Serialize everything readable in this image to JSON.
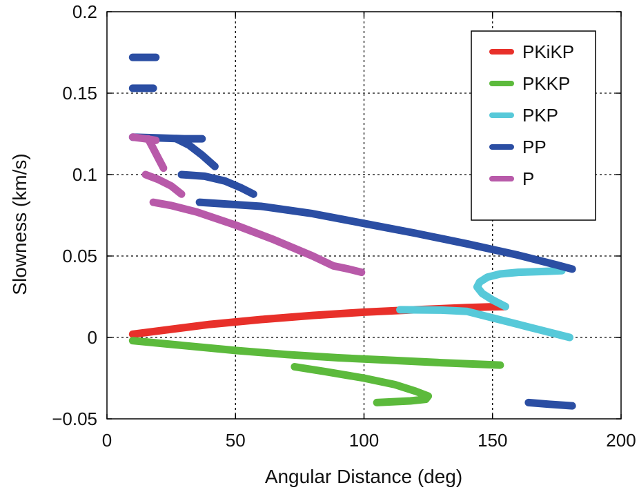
{
  "chart_data": {
    "type": "scatter",
    "xlabel": "Angular Distance (deg)",
    "ylabel": "Slowness (km/s)",
    "xlim": [
      0,
      200
    ],
    "ylim": [
      -0.05,
      0.2
    ],
    "xticks": [
      0,
      50,
      100,
      150,
      200
    ],
    "xtick_labels": [
      "0",
      "50",
      "100",
      "150",
      "200"
    ],
    "yticks": [
      -0.05,
      0,
      0.05,
      0.1,
      0.15,
      0.2
    ],
    "ytick_labels": [
      "−0.05",
      "0",
      "0.05",
      "0.1",
      "0.15",
      "0.2"
    ],
    "grid": true,
    "legend_position": "top-right",
    "series": [
      {
        "name": "PKiKP",
        "color": "#e8302a",
        "segments": [
          [
            [
              10,
              0.002
            ],
            [
              20,
              0.004
            ],
            [
              40,
              0.008
            ],
            [
              60,
              0.011
            ],
            [
              80,
              0.0135
            ],
            [
              100,
              0.0155
            ],
            [
              120,
              0.017
            ],
            [
              140,
              0.0183
            ],
            [
              150,
              0.0188
            ],
            [
              155,
              0.019
            ]
          ]
        ]
      },
      {
        "name": "PKKP",
        "color": "#5cba3c",
        "segments": [
          [
            [
              10,
              -0.002
            ],
            [
              30,
              -0.005
            ],
            [
              50,
              -0.008
            ],
            [
              70,
              -0.0105
            ],
            [
              90,
              -0.0125
            ],
            [
              110,
              -0.014
            ],
            [
              130,
              -0.0155
            ],
            [
              153,
              -0.017
            ]
          ],
          [
            [
              73,
              -0.018
            ],
            [
              85,
              -0.021
            ],
            [
              100,
              -0.025
            ],
            [
              112,
              -0.029
            ],
            [
              120,
              -0.033
            ],
            [
              125,
              -0.036
            ],
            [
              124,
              -0.038
            ],
            [
              118,
              -0.039
            ],
            [
              105,
              -0.04
            ]
          ]
        ]
      },
      {
        "name": "PKP",
        "color": "#57c9d9",
        "segments": [
          [
            [
              114,
              0.017
            ],
            [
              130,
              0.0168
            ],
            [
              140,
              0.016
            ],
            [
              150,
              0.012
            ],
            [
              160,
              0.008
            ],
            [
              170,
              0.004
            ],
            [
              180,
              0.0
            ]
          ],
          [
            [
              155,
              0.019
            ],
            [
              150,
              0.023
            ],
            [
              146,
              0.027
            ],
            [
              144,
              0.031
            ],
            [
              145,
              0.034
            ],
            [
              148,
              0.037
            ],
            [
              153,
              0.039
            ],
            [
              160,
              0.04
            ],
            [
              170,
              0.0405
            ],
            [
              177,
              0.041
            ]
          ]
        ]
      },
      {
        "name": "PP",
        "color": "#2b4ea3",
        "segments": [
          [
            [
              10,
              0.172
            ],
            [
              19,
              0.172
            ]
          ],
          [
            [
              10,
              0.153
            ],
            [
              18,
              0.153
            ]
          ],
          [
            [
              10,
              0.123
            ],
            [
              20,
              0.1225
            ],
            [
              30,
              0.122
            ],
            [
              37,
              0.122
            ]
          ],
          [
            [
              27,
              0.122
            ],
            [
              32,
              0.118
            ],
            [
              37,
              0.112
            ],
            [
              42,
              0.105
            ]
          ],
          [
            [
              29,
              0.1
            ],
            [
              38,
              0.099
            ],
            [
              46,
              0.096
            ],
            [
              52,
              0.092
            ],
            [
              57,
              0.088
            ]
          ],
          [
            [
              36,
              0.083
            ],
            [
              60,
              0.0805
            ],
            [
              80,
              0.076
            ],
            [
              100,
              0.07
            ],
            [
              120,
              0.064
            ],
            [
              140,
              0.0575
            ],
            [
              160,
              0.0505
            ],
            [
              175,
              0.0445
            ],
            [
              181,
              0.042
            ]
          ],
          [
            [
              164,
              -0.04
            ],
            [
              172,
              -0.041
            ],
            [
              181,
              -0.042
            ]
          ]
        ]
      },
      {
        "name": "P",
        "color": "#b85aa9",
        "segments": [
          [
            [
              10,
              0.123
            ],
            [
              15,
              0.122
            ],
            [
              19,
              0.121
            ]
          ],
          [
            [
              16,
              0.122
            ],
            [
              18,
              0.116
            ],
            [
              20,
              0.11
            ],
            [
              22,
              0.104
            ]
          ],
          [
            [
              15,
              0.1
            ],
            [
              20,
              0.097
            ],
            [
              25,
              0.093
            ],
            [
              29,
              0.088
            ]
          ],
          [
            [
              18,
              0.083
            ],
            [
              25,
              0.081
            ],
            [
              35,
              0.077
            ],
            [
              50,
              0.069
            ],
            [
              65,
              0.06
            ],
            [
              80,
              0.05
            ],
            [
              88,
              0.044
            ],
            [
              94,
              0.042
            ],
            [
              99,
              0.04
            ]
          ]
        ]
      }
    ]
  }
}
